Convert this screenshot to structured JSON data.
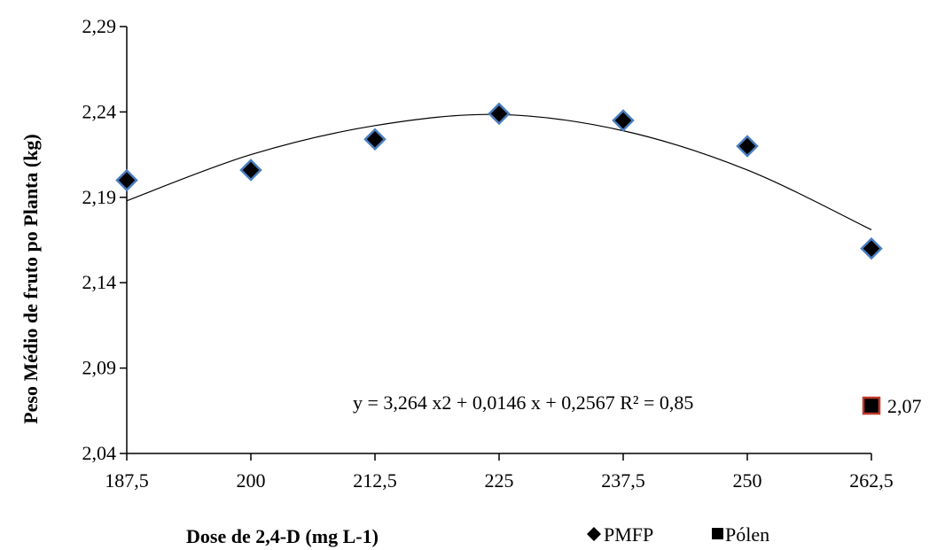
{
  "chart_data": {
    "type": "scatter",
    "xlabel": "Dose de 2,4-D (mg L-1)",
    "ylabel": "Peso Médio de fruto po Planta (kg)",
    "x_ticks": [
      "187,5",
      "200",
      "212,5",
      "225",
      "237,5",
      "250",
      "262,5"
    ],
    "y_ticks": [
      "2,04",
      "2,09",
      "2,14",
      "2,19",
      "2,24",
      "2,29"
    ],
    "xlim": [
      187.5,
      262.5
    ],
    "ylim": [
      2.04,
      2.29
    ],
    "series": [
      {
        "name": "PMFP",
        "marker": "diamond",
        "color": "#000000",
        "edge_color": "#4a7ec0",
        "points": [
          {
            "x": 187.5,
            "y": 2.2
          },
          {
            "x": 200,
            "y": 2.206
          },
          {
            "x": 212.5,
            "y": 2.224
          },
          {
            "x": 225,
            "y": 2.239
          },
          {
            "x": 237.5,
            "y": 2.235
          },
          {
            "x": 250,
            "y": 2.22
          },
          {
            "x": 262.5,
            "y": 2.16
          }
        ]
      },
      {
        "name": "Pólen",
        "marker": "square",
        "color": "#000000",
        "edge_color": "#c0392b",
        "points": [
          {
            "x": 262.5,
            "y": 2.068,
            "label": "2,07"
          }
        ]
      }
    ],
    "trendline": {
      "type": "polynomial",
      "order": 2,
      "color": "#000000",
      "equation": "y = 3,264 x2 + 0,0146 x + 0,2567 R² = 0,85",
      "curve": [
        {
          "x": 187.5,
          "y": 2.188
        },
        {
          "x": 200,
          "y": 2.215
        },
        {
          "x": 212.5,
          "y": 2.232
        },
        {
          "x": 225,
          "y": 2.2385
        },
        {
          "x": 237.5,
          "y": 2.229
        },
        {
          "x": 250,
          "y": 2.206
        },
        {
          "x": 262.5,
          "y": 2.171
        }
      ]
    },
    "grid": false,
    "legend_position": "bottom-right"
  }
}
